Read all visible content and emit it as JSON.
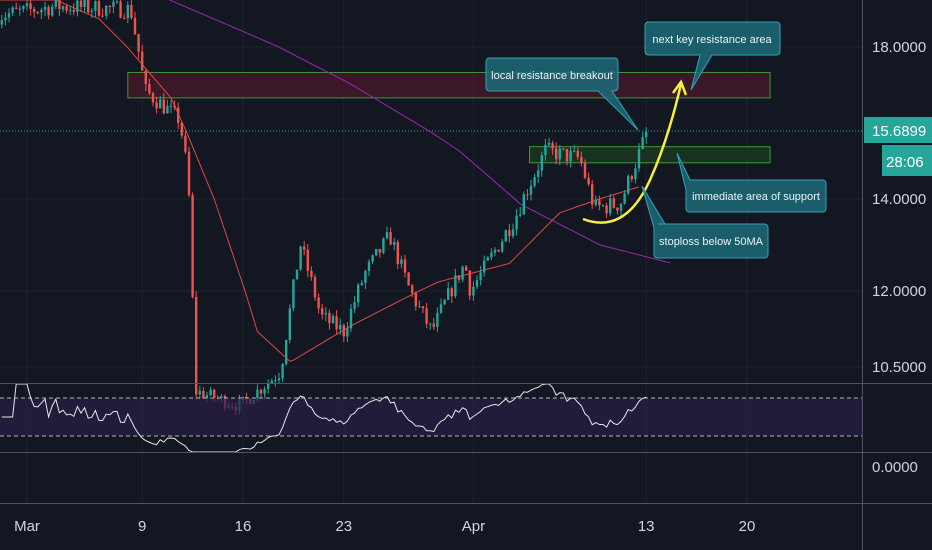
{
  "chart_data": {
    "type": "candlestick",
    "title": "",
    "price_axis": {
      "ticks": [
        18.0,
        14.0,
        12.0,
        10.5
      ],
      "tick_labels": [
        "18.0000",
        "14.0000",
        "12.0000",
        "10.5000"
      ]
    },
    "last_price": {
      "value": 15.6899,
      "label": "15.6899",
      "countdown": "28:06"
    },
    "oscillator_axis": {
      "tick_labels": [
        "0.0000"
      ]
    },
    "time_axis": {
      "tick_labels": [
        "Mar",
        "9",
        "16",
        "23",
        "Apr",
        "13",
        "20"
      ],
      "tick_days": [
        0,
        8,
        15,
        22,
        31,
        43,
        50
      ]
    },
    "price_path_day_price": [
      [
        -2,
        19.0
      ],
      [
        2,
        19.3
      ],
      [
        7.2,
        19.2
      ],
      [
        8.2,
        16.8
      ],
      [
        10.6,
        16.0
      ],
      [
        11.2,
        14.5
      ],
      [
        11.7,
        10.0
      ],
      [
        14.8,
        9.7
      ],
      [
        17.6,
        10.4
      ],
      [
        19,
        13.0
      ],
      [
        20.4,
        11.5
      ],
      [
        22,
        11.2
      ],
      [
        23.5,
        12.4
      ],
      [
        25.2,
        13.2
      ],
      [
        26.6,
        12.0
      ],
      [
        28.1,
        11.2
      ],
      [
        30.4,
        12.6
      ],
      [
        30.8,
        12.0
      ],
      [
        33.9,
        13.6
      ],
      [
        36,
        15.2
      ],
      [
        38.4,
        15.0
      ],
      [
        39.4,
        13.8
      ],
      [
        41.2,
        13.9
      ],
      [
        43.1,
        15.7
      ]
    ],
    "ma50_day_price": [
      [
        -2,
        19.5
      ],
      [
        2,
        19.5
      ],
      [
        5,
        18.9
      ],
      [
        10,
        16.6
      ],
      [
        13,
        14.0
      ],
      [
        16,
        11.2
      ],
      [
        18.3,
        10.6
      ],
      [
        22.4,
        11.3
      ],
      [
        28.6,
        12.2
      ],
      [
        33.5,
        12.6
      ],
      [
        37,
        13.7
      ],
      [
        42.5,
        14.3
      ]
    ],
    "ma200_day_price": [
      [
        9.9,
        19.5
      ],
      [
        16,
        18.3
      ],
      [
        22.4,
        17.0
      ],
      [
        30,
        15.2
      ],
      [
        34.2,
        13.9
      ],
      [
        39.8,
        13.0
      ],
      [
        44.8,
        12.6
      ]
    ],
    "rsi_levels": [
      70,
      30
    ],
    "zones": [
      {
        "name": "next resistance zone",
        "from_day": 7,
        "to_day": 51.6,
        "low": 16.6,
        "high": 17.3
      },
      {
        "name": "support zone",
        "from_day": 34.9,
        "to_day": 51.6,
        "low": 14.9,
        "high": 15.3
      }
    ],
    "annotations": [
      {
        "text": "next key resistance area"
      },
      {
        "text": "local resistance breakout"
      },
      {
        "text": "immediate area of support"
      },
      {
        "text": "stoploss below 50MA"
      }
    ]
  },
  "colors": {
    "up": "#26a69a",
    "down": "#ef5350",
    "ma50": "#e0483e",
    "ma200": "#9c27b0",
    "projection": "#f5f03a",
    "callout": "#1e6a78",
    "background": "#131722"
  }
}
